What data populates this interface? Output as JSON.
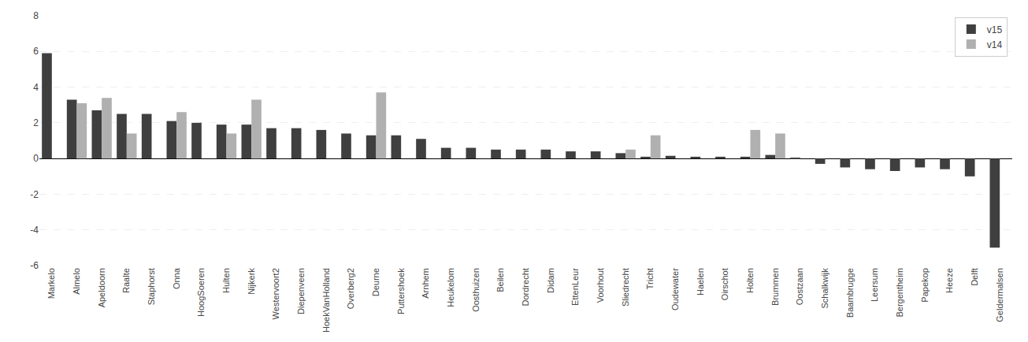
{
  "chart_data": {
    "type": "bar",
    "categories": [
      "Markelo",
      "Almelo",
      "Apeldoorn",
      "Raalte",
      "Staphorst",
      "Onna",
      "HoogSoeren",
      "Hulten",
      "Nijkerk",
      "Westervoort2",
      "Diepenveen",
      "HoekVanHolland",
      "Overberg2",
      "Deurne",
      "Puttershoek",
      "Arnhem",
      "Heukelom",
      "Oosthuizen",
      "Beilen",
      "Dordrecht",
      "Didam",
      "EttenLeur",
      "Voorhout",
      "Sliedrecht",
      "Tricht",
      "Oudewater",
      "Haelen",
      "Oirschot",
      "Holten",
      "Brummen",
      "Oostzaan",
      "Schalkwijk",
      "Baambrugge",
      "Leersum",
      "Bergentheim",
      "Papekop",
      "Heeze",
      "Delft",
      "Geldermalsen"
    ],
    "series": [
      {
        "name": "v15",
        "color": "#3f3f3f",
        "values": [
          5.9,
          3.3,
          2.7,
          2.5,
          2.5,
          2.1,
          2.0,
          1.9,
          1.9,
          1.7,
          1.7,
          1.6,
          1.4,
          1.3,
          1.3,
          1.1,
          0.6,
          0.6,
          0.5,
          0.5,
          0.5,
          0.4,
          0.4,
          0.3,
          0.1,
          0.15,
          0.1,
          0.1,
          0.1,
          0.2,
          0.05,
          -0.3,
          -0.5,
          -0.6,
          -0.7,
          -0.5,
          -0.6,
          -1.0,
          -5.0
        ]
      },
      {
        "name": "v14",
        "color": "#b0b0b0",
        "values": [
          null,
          3.1,
          3.4,
          1.4,
          null,
          2.6,
          null,
          1.4,
          3.3,
          null,
          null,
          null,
          null,
          3.7,
          null,
          null,
          null,
          null,
          null,
          null,
          null,
          null,
          null,
          0.5,
          1.3,
          null,
          null,
          null,
          1.6,
          1.4,
          null,
          null,
          null,
          null,
          null,
          null,
          null,
          null,
          null
        ]
      }
    ],
    "ylim": [
      -6,
      8
    ],
    "yticks": [
      -6,
      -4,
      -2,
      0,
      2,
      4,
      6,
      8
    ],
    "grid": true,
    "legend": "upper right"
  }
}
